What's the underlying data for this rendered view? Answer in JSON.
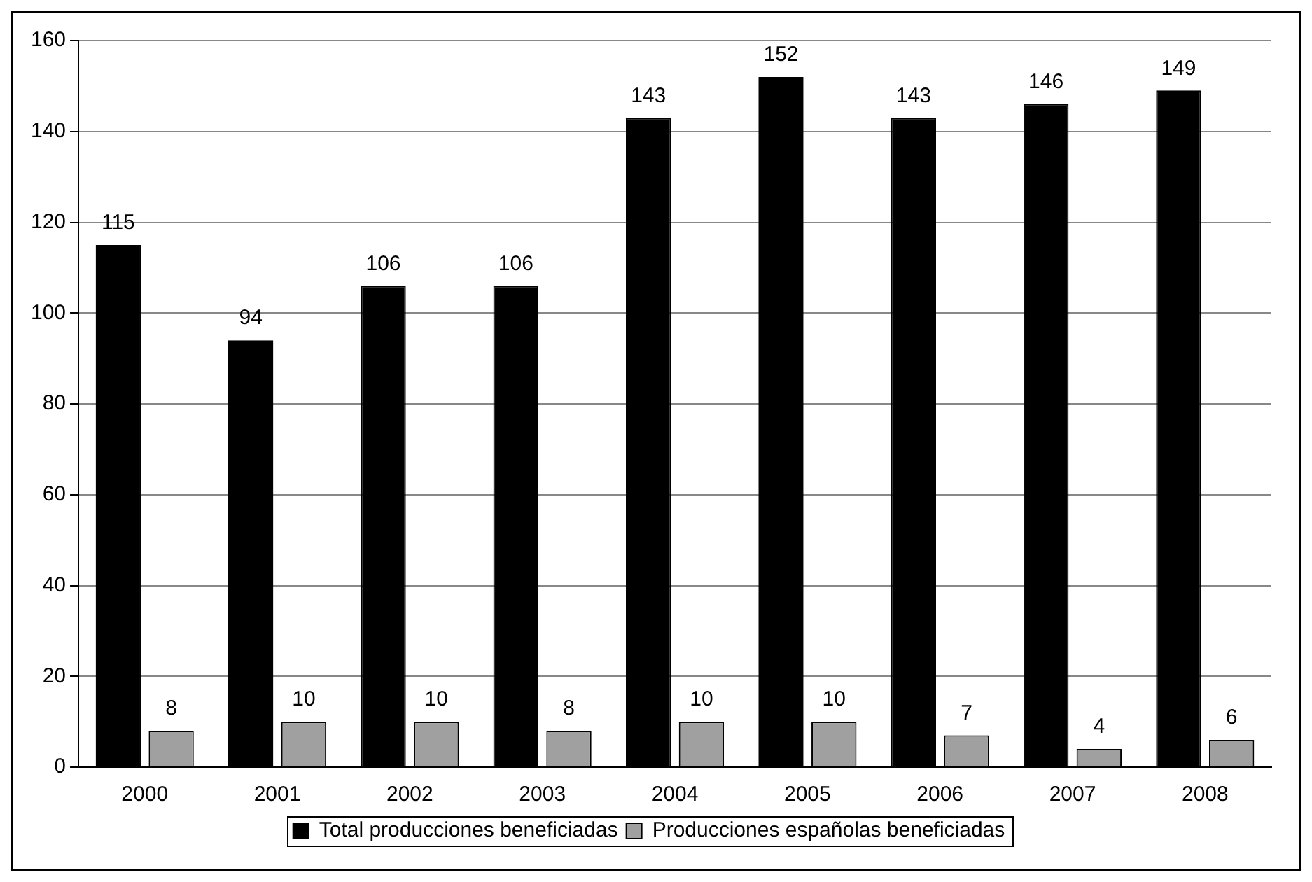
{
  "chart_data": {
    "type": "bar",
    "categories": [
      "2000",
      "2001",
      "2002",
      "2003",
      "2004",
      "2005",
      "2006",
      "2007",
      "2008"
    ],
    "series": [
      {
        "name": "Total producciones beneficiadas",
        "color": "#000000",
        "values": [
          115,
          94,
          106,
          106,
          143,
          152,
          143,
          146,
          149
        ]
      },
      {
        "name": "Producciones españolas beneficiadas",
        "color": "#a0a0a0",
        "values": [
          8,
          10,
          10,
          8,
          10,
          10,
          7,
          4,
          6
        ]
      }
    ],
    "ylim": [
      0,
      160
    ],
    "yticks": [
      0,
      20,
      40,
      60,
      80,
      100,
      120,
      140,
      160
    ],
    "grid": "y",
    "legend": "bottom",
    "data_labels": true
  }
}
